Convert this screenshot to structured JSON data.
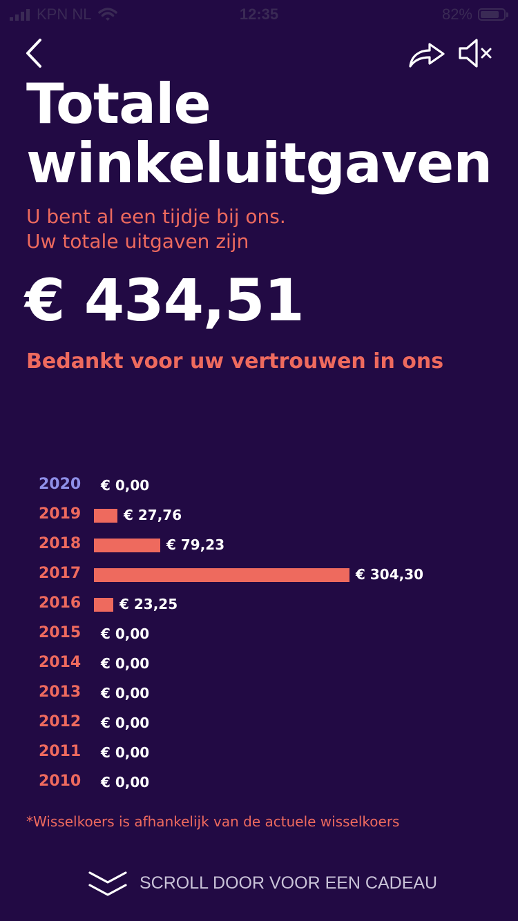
{
  "status_bar": {
    "carrier": "KPN NL",
    "time": "12:35",
    "battery": "82%",
    "battery_level": 0.82
  },
  "header": {
    "back_icon": "chevron-left-icon",
    "share_icon": "share-arrow-icon",
    "mute_icon": "speaker-muted-icon"
  },
  "main": {
    "title_line1": "Totale",
    "title_line2": "winkeluitgaven",
    "intro_line1": "U bent al een tijdje bij ons.",
    "intro_line2": "Uw totale uitgaven zijn",
    "total": "€ 434,51",
    "thanks": "Bedankt voor uw vertrouwen in ons"
  },
  "chart_data": {
    "type": "bar",
    "orientation": "horizontal",
    "categories": [
      "2020",
      "2019",
      "2018",
      "2017",
      "2016",
      "2015",
      "2014",
      "2013",
      "2012",
      "2011",
      "2010"
    ],
    "values": [
      0,
      27.76,
      79.23,
      304.3,
      23.25,
      0,
      0,
      0,
      0,
      0,
      0
    ],
    "value_labels": [
      "€ 0,00",
      "€ 27,76",
      "€ 79,23",
      "€ 304,30",
      "€ 23,25",
      "€ 0,00",
      "€ 0,00",
      "€ 0,00",
      "€ 0,00",
      "€ 0,00",
      "€ 0,00"
    ],
    "highlight_category": "2020",
    "colors": {
      "bar": "#ee6a5e",
      "year": "#ee6a5e",
      "current_year": "#8f8fe8"
    }
  },
  "footer": {
    "footnote": "*Wisselkoers is afhankelijk van de actuele wisselkoers",
    "scroll_label": "SCROLL DOOR VOOR EEN CADEAU",
    "scroll_icon": "double-chevron-down-icon"
  },
  "colors": {
    "background": "#220a44",
    "accent": "#ee6a5e",
    "text": "#ffffff"
  }
}
